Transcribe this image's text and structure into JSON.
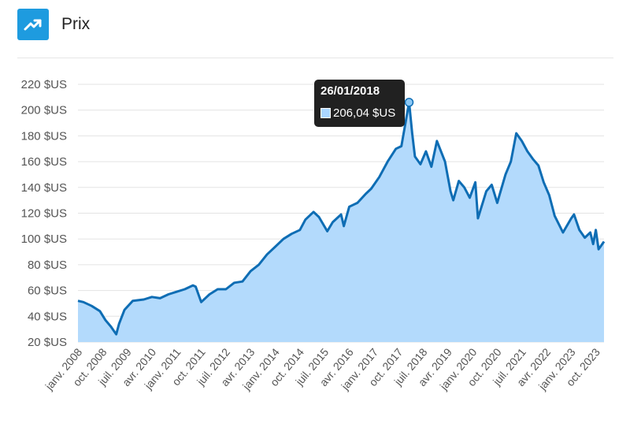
{
  "header": {
    "title": "Prix",
    "icon": "trending-up-icon"
  },
  "tooltip": {
    "date": "26/01/2018",
    "value_label": "206,04 $US",
    "value": 206.04
  },
  "colors": {
    "line": "#0e6db4",
    "fill": "#b3dafc",
    "icon_bg": "#1e9bdf",
    "tooltip_bg": "#212121",
    "marker": "#8cc8f5"
  },
  "chart_data": {
    "type": "area",
    "title": "",
    "xlabel": "",
    "ylabel": "",
    "ylim": [
      20,
      220
    ],
    "yticks": [
      20,
      40,
      60,
      80,
      100,
      120,
      140,
      160,
      180,
      200,
      220
    ],
    "ytick_labels": [
      "20 $US",
      "40 $US",
      "60 $US",
      "80 $US",
      "100 $US",
      "120 $US",
      "140 $US",
      "160 $US",
      "180 $US",
      "200 $US",
      "220 $US"
    ],
    "xlim": [
      "2008-01-01",
      "2023-12-31"
    ],
    "xticks": [
      "2008-01-01",
      "2008-10-01",
      "2009-07-01",
      "2010-04-01",
      "2011-01-01",
      "2011-10-01",
      "2012-07-01",
      "2013-04-01",
      "2014-01-01",
      "2014-10-01",
      "2015-07-01",
      "2016-04-01",
      "2017-01-01",
      "2017-10-01",
      "2018-07-01",
      "2019-04-01",
      "2020-01-01",
      "2020-10-01",
      "2021-07-01",
      "2022-04-01",
      "2023-01-01",
      "2023-10-01"
    ],
    "xtick_labels": [
      "janv. 2008",
      "oct. 2008",
      "juil. 2009",
      "avr. 2010",
      "janv. 2011",
      "oct. 2011",
      "juil. 2012",
      "avr. 2013",
      "janv. 2014",
      "oct. 2014",
      "juil. 2015",
      "avr. 2016",
      "janv. 2017",
      "oct. 2017",
      "juil. 2018",
      "avr. 2019",
      "janv. 2020",
      "oct. 2020",
      "juil. 2021",
      "avr. 2022",
      "janv. 2023",
      "oct. 2023"
    ],
    "grid": true,
    "highlight": {
      "x": "2018-01-26",
      "y": 206.04
    },
    "series": [
      {
        "x": [
          "2008-01-01",
          "2008-03-01",
          "2008-06-01",
          "2008-09-01",
          "2008-11-01",
          "2009-01-01",
          "2009-03-01",
          "2009-04-01",
          "2009-06-01",
          "2009-09-01",
          "2010-01-01",
          "2010-04-01",
          "2010-07-01",
          "2010-10-01",
          "2011-01-01",
          "2011-04-01",
          "2011-07-01",
          "2011-08-01",
          "2011-10-01",
          "2012-01-01",
          "2012-04-01",
          "2012-07-01",
          "2012-10-01",
          "2013-01-01",
          "2013-04-01",
          "2013-07-01",
          "2013-10-01",
          "2014-01-01",
          "2014-04-01",
          "2014-07-01",
          "2014-10-01",
          "2014-12-01",
          "2015-03-01",
          "2015-05-01",
          "2015-08-01",
          "2015-10-01",
          "2016-01-01",
          "2016-02-01",
          "2016-04-01",
          "2016-07-01",
          "2016-10-01",
          "2016-12-01",
          "2017-03-01",
          "2017-06-01",
          "2017-09-01",
          "2017-11-01",
          "2018-01-26",
          "2018-03-01",
          "2018-04-01",
          "2018-06-01",
          "2018-08-01",
          "2018-10-01",
          "2018-12-01",
          "2019-03-01",
          "2019-05-01",
          "2019-06-01",
          "2019-08-01",
          "2019-10-01",
          "2019-12-01",
          "2020-02-01",
          "2020-03-01",
          "2020-06-01",
          "2020-08-01",
          "2020-10-01",
          "2021-01-01",
          "2021-03-01",
          "2021-05-01",
          "2021-07-01",
          "2021-09-01",
          "2021-11-01",
          "2022-01-01",
          "2022-03-01",
          "2022-05-01",
          "2022-07-01",
          "2022-10-01",
          "2023-01-01",
          "2023-02-01",
          "2023-04-01",
          "2023-06-01",
          "2023-08-01",
          "2023-09-01",
          "2023-10-01",
          "2023-11-01",
          "2023-12-31"
        ],
        "values": [
          52,
          51,
          48,
          44,
          37,
          32,
          26,
          34,
          45,
          52,
          53,
          55,
          54,
          57,
          59,
          61,
          64,
          63,
          51,
          57,
          61,
          61,
          66,
          67,
          75,
          80,
          88,
          94,
          100,
          104,
          107,
          115,
          121,
          117,
          106,
          113,
          119,
          110,
          125,
          128,
          135,
          139,
          148,
          160,
          170,
          172,
          206.04,
          182,
          164,
          158,
          168,
          156,
          176,
          160,
          137,
          130,
          145,
          140,
          132,
          144,
          116,
          137,
          142,
          128,
          150,
          160,
          182,
          176,
          168,
          162,
          157,
          144,
          134,
          118,
          105,
          116,
          119,
          107,
          101,
          105,
          96,
          107,
          92,
          98
        ]
      }
    ]
  }
}
